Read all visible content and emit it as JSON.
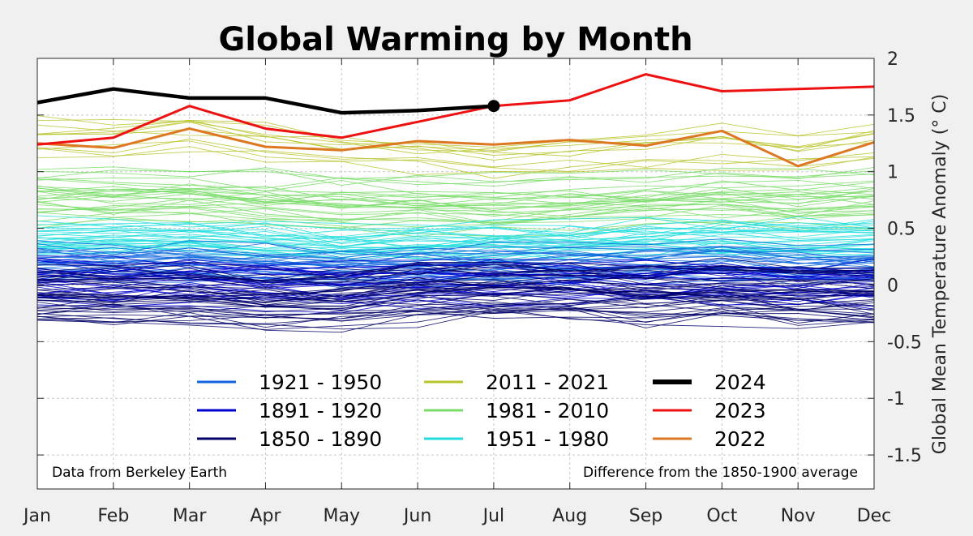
{
  "chart_data": {
    "type": "line",
    "title": "Global Warming by Month",
    "xlabel": "",
    "ylabel": "Global Mean Temperature Anomaly (° C)",
    "categories": [
      "Jan",
      "Feb",
      "Mar",
      "Apr",
      "May",
      "Jun",
      "Jul",
      "Aug",
      "Sep",
      "Oct",
      "Nov",
      "Dec"
    ],
    "ylim": [
      -1.8,
      2.0
    ],
    "yticks": [
      2,
      1.5,
      1,
      0.5,
      0,
      -0.5,
      -1,
      -1.5
    ],
    "ytick_labels": [
      "2",
      "1.5",
      "1",
      "0.5",
      "0",
      "-0.5",
      "-1",
      "-1.5"
    ],
    "y_axis_side": "right",
    "grid": true,
    "legend_placement": "bottom-center",
    "annotations": {
      "left": "Data from Berkeley Earth",
      "right": "Difference from the 1850-1900 average"
    },
    "series": [
      {
        "name": "2024",
        "color": "#000000",
        "values": [
          1.61,
          1.73,
          1.65,
          1.65,
          1.52,
          1.54,
          1.58,
          null,
          null,
          null,
          null,
          null
        ],
        "marker_last": true
      },
      {
        "name": "2023",
        "color": "#ee1111",
        "values": [
          1.24,
          1.3,
          1.58,
          1.38,
          1.3,
          1.44,
          1.58,
          1.63,
          1.86,
          1.71,
          1.73,
          1.75
        ]
      },
      {
        "name": "2022",
        "color": "#dd7722",
        "values": [
          1.25,
          1.21,
          1.38,
          1.22,
          1.19,
          1.27,
          1.24,
          1.28,
          1.23,
          1.36,
          1.05,
          1.26
        ]
      }
    ],
    "period_bands": [
      {
        "name": "2011 - 2021",
        "color": "#b8c42e",
        "years": 11,
        "base": [
          1.3,
          1.28,
          1.32,
          1.25,
          1.18,
          1.15,
          1.1,
          1.15,
          1.18,
          1.22,
          1.18,
          1.24
        ],
        "spread": 0.17
      },
      {
        "name": "1981 - 2010",
        "color": "#7adc6a",
        "years": 30,
        "base": [
          0.78,
          0.76,
          0.78,
          0.74,
          0.71,
          0.7,
          0.69,
          0.71,
          0.74,
          0.76,
          0.74,
          0.77
        ],
        "spread": 0.24
      },
      {
        "name": "1951 - 1980",
        "color": "#22dddd",
        "years": 30,
        "base": [
          0.42,
          0.4,
          0.42,
          0.38,
          0.36,
          0.37,
          0.37,
          0.38,
          0.4,
          0.42,
          0.4,
          0.42
        ],
        "spread": 0.14
      },
      {
        "name": "1921 - 1950",
        "color": "#1166dd",
        "years": 30,
        "base": [
          0.22,
          0.2,
          0.22,
          0.18,
          0.17,
          0.18,
          0.19,
          0.19,
          0.2,
          0.22,
          0.19,
          0.21
        ],
        "spread": 0.14
      },
      {
        "name": "1891 - 1920",
        "color": "#0000cc",
        "years": 30,
        "base": [
          0.02,
          0.0,
          0.02,
          -0.02,
          -0.03,
          0.0,
          0.01,
          0.0,
          0.0,
          0.01,
          -0.02,
          0.0
        ],
        "spread": 0.2
      },
      {
        "name": "1850 - 1890",
        "color": "#000066",
        "years": 41,
        "base": [
          -0.08,
          -0.1,
          -0.1,
          -0.12,
          -0.12,
          -0.06,
          -0.04,
          -0.04,
          -0.08,
          -0.06,
          -0.1,
          -0.1
        ],
        "spread": 0.26
      }
    ],
    "legend": [
      {
        "label": "1921 - 1950",
        "color": "#1166dd",
        "bold": false
      },
      {
        "label": "1891 - 1920",
        "color": "#0000cc",
        "bold": false
      },
      {
        "label": "1850 - 1890",
        "color": "#000066",
        "bold": false
      },
      {
        "label": "2011 - 2021",
        "color": "#b8c42e",
        "bold": false
      },
      {
        "label": "1981 - 2010",
        "color": "#7adc6a",
        "bold": false
      },
      {
        "label": "1951 - 1980",
        "color": "#22dddd",
        "bold": false
      },
      {
        "label": "2024",
        "color": "#000000",
        "bold": true
      },
      {
        "label": "2023",
        "color": "#ee1111",
        "bold": false
      },
      {
        "label": "2022",
        "color": "#dd7722",
        "bold": false
      }
    ]
  }
}
